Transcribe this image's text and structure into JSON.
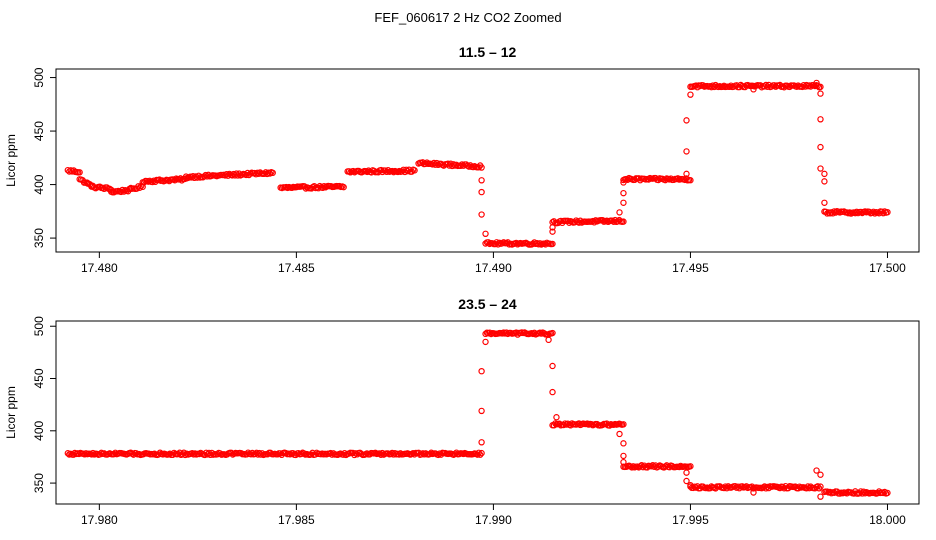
{
  "figure": {
    "title": "FEF_060617  2 Hz CO2 Zoomed"
  },
  "colors": {
    "points": "#ff0000",
    "axes": "#000000",
    "background": "#ffffff"
  },
  "chart_data": [
    {
      "type": "scatter",
      "title": "11.5 – 12",
      "xlabel": "",
      "ylabel": "Licor ppm",
      "xlim": [
        17.4789,
        17.5008
      ],
      "ylim": [
        337,
        508
      ],
      "xticks": [
        17.48,
        17.485,
        17.49,
        17.495,
        17.5
      ],
      "xtick_labels": [
        "17.480",
        "17.485",
        "17.490",
        "17.495",
        "17.500"
      ],
      "yticks": [
        350,
        400,
        450,
        500
      ],
      "ytick_labels": [
        "350",
        "400",
        "450",
        "500"
      ],
      "grid": false,
      "series": [
        {
          "color": "#ff0000",
          "marker": "open-circle",
          "segments": [
            {
              "x0": 17.4792,
              "x1": 17.4795,
              "y0": 413,
              "y1": 412
            },
            {
              "x0": 17.4795,
              "x1": 17.4798,
              "y0": 405,
              "y1": 399
            },
            {
              "x0": 17.4798,
              "x1": 17.4803,
              "y0": 398,
              "y1": 396
            },
            {
              "x0": 17.4803,
              "x1": 17.4808,
              "y0": 393,
              "y1": 395
            },
            {
              "x0": 17.4808,
              "x1": 17.4811,
              "y0": 396,
              "y1": 398
            },
            {
              "x0": 17.4811,
              "x1": 17.4822,
              "y0": 403,
              "y1": 405
            },
            {
              "x0": 17.4822,
              "x1": 17.4844,
              "y0": 407,
              "y1": 411
            },
            {
              "x0": 17.4846,
              "x1": 17.4862,
              "y0": 397,
              "y1": 398
            },
            {
              "x0": 17.4863,
              "x1": 17.488,
              "y0": 412,
              "y1": 413
            },
            {
              "x0": 17.4881,
              "x1": 17.4897,
              "y0": 420,
              "y1": 417
            },
            {
              "x0": 17.4898,
              "x1": 17.4915,
              "y0": 345,
              "y1": 345
            },
            {
              "x0": 17.4915,
              "x1": 17.4933,
              "y0": 365,
              "y1": 366
            },
            {
              "x0": 17.4933,
              "x1": 17.495,
              "y0": 405,
              "y1": 405
            },
            {
              "x0": 17.495,
              "x1": 17.4983,
              "y0": 492,
              "y1": 492
            },
            {
              "x0": 17.4984,
              "x1": 17.5,
              "y0": 374,
              "y1": 374
            }
          ],
          "points": [
            [
              17.4797,
              401
            ],
            [
              17.4897,
              404
            ],
            [
              17.4897,
              393
            ],
            [
              17.4897,
              372
            ],
            [
              17.4898,
              354
            ],
            [
              17.4915,
              356
            ],
            [
              17.4915,
              360
            ],
            [
              17.4932,
              374
            ],
            [
              17.4933,
              383
            ],
            [
              17.4933,
              392
            ],
            [
              17.4933,
              402
            ],
            [
              17.4949,
              410
            ],
            [
              17.4949,
              431
            ],
            [
              17.4949,
              460
            ],
            [
              17.495,
              484
            ],
            [
              17.4966,
              489
            ],
            [
              17.4982,
              495
            ],
            [
              17.4983,
              485
            ],
            [
              17.4983,
              461
            ],
            [
              17.4983,
              435
            ],
            [
              17.4983,
              415
            ],
            [
              17.4984,
              410
            ],
            [
              17.4984,
              403
            ],
            [
              17.4984,
              383
            ]
          ]
        }
      ]
    },
    {
      "type": "scatter",
      "title": "23.5 – 24",
      "xlabel": "",
      "ylabel": "Licor ppm",
      "xlim": [
        17.9789,
        18.0008
      ],
      "ylim": [
        330,
        505
      ],
      "xticks": [
        17.98,
        17.985,
        17.99,
        17.995,
        18.0
      ],
      "xtick_labels": [
        "17.980",
        "17.985",
        "17.990",
        "17.995",
        "18.000"
      ],
      "yticks": [
        350,
        400,
        450,
        500
      ],
      "ytick_labels": [
        "350",
        "400",
        "450",
        "500"
      ],
      "grid": false,
      "series": [
        {
          "color": "#ff0000",
          "marker": "open-circle",
          "segments": [
            {
              "x0": 17.9792,
              "x1": 17.9897,
              "y0": 378,
              "y1": 378
            },
            {
              "x0": 17.9898,
              "x1": 17.9915,
              "y0": 493,
              "y1": 493
            },
            {
              "x0": 17.9915,
              "x1": 17.9933,
              "y0": 406,
              "y1": 406
            },
            {
              "x0": 17.9933,
              "x1": 17.995,
              "y0": 366,
              "y1": 366
            },
            {
              "x0": 17.995,
              "x1": 17.9983,
              "y0": 346,
              "y1": 346
            },
            {
              "x0": 17.9984,
              "x1": 18.0,
              "y0": 341,
              "y1": 341
            }
          ],
          "points": [
            [
              17.9897,
              389
            ],
            [
              17.9897,
              419
            ],
            [
              17.9897,
              457
            ],
            [
              17.9898,
              485
            ],
            [
              17.9914,
              487
            ],
            [
              17.9915,
              462
            ],
            [
              17.9915,
              437
            ],
            [
              17.9916,
              413
            ],
            [
              17.9932,
              397
            ],
            [
              17.9933,
              388
            ],
            [
              17.9933,
              376
            ],
            [
              17.9933,
              370
            ],
            [
              17.9949,
              360
            ],
            [
              17.9949,
              352
            ],
            [
              17.995,
              348
            ],
            [
              17.9966,
              341
            ],
            [
              17.9982,
              362
            ],
            [
              17.9983,
              358
            ],
            [
              17.9983,
              337
            ]
          ]
        }
      ]
    }
  ]
}
